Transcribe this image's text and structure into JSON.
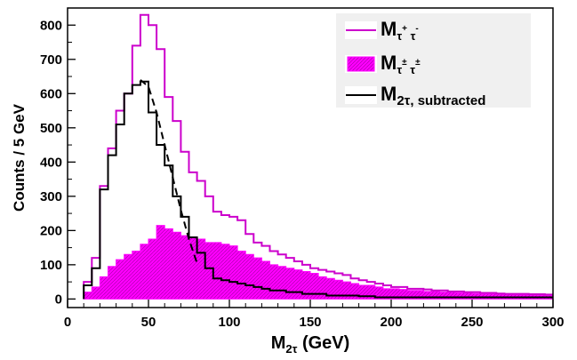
{
  "chart_data": {
    "type": "histogram",
    "xlabel": "M",
    "xlabel_sub": "2τ",
    "xlabel_unit": "(GeV)",
    "ylabel": "Counts / 5 GeV",
    "xlim": [
      0,
      300
    ],
    "ylim": [
      -25,
      850
    ],
    "x_ticks": [
      0,
      50,
      100,
      150,
      200,
      250,
      300
    ],
    "y_ticks": [
      0,
      100,
      200,
      300,
      400,
      500,
      600,
      700,
      800
    ],
    "bin_width": 5,
    "bin_edges_start": 10,
    "grid": false,
    "legend_position": "top-right",
    "series": [
      {
        "name": "M",
        "name_sub": "τ",
        "name_sup1": "+",
        "name_mid": " τ",
        "name_sup2": "-",
        "style": "step-line",
        "color": "#cc00cc",
        "values": [
          50,
          120,
          330,
          440,
          550,
          600,
          740,
          830,
          800,
          730,
          590,
          520,
          430,
          370,
          345,
          300,
          255,
          245,
          240,
          230,
          190,
          165,
          155,
          140,
          130,
          120,
          110,
          100,
          90,
          85,
          80,
          75,
          70,
          60,
          55,
          50,
          45,
          40,
          35,
          35,
          30,
          30,
          28,
          25,
          25,
          22,
          22,
          20,
          20,
          18,
          18,
          16,
          15,
          15,
          15,
          14,
          14,
          13,
          12
        ]
      },
      {
        "name": "M",
        "name_sub": "τ",
        "name_sup1": "±",
        "name_mid": " τ",
        "name_sup2": "±",
        "style": "filled-hatched",
        "color": "#ff00ff",
        "values": [
          20,
          35,
          65,
          95,
          115,
          130,
          140,
          160,
          175,
          215,
          205,
          195,
          185,
          180,
          175,
          165,
          165,
          160,
          155,
          140,
          130,
          120,
          110,
          100,
          95,
          90,
          85,
          80,
          75,
          65,
          60,
          55,
          50,
          45,
          40,
          40,
          35,
          30,
          30,
          28,
          25,
          25,
          22,
          22,
          20,
          20,
          18,
          18,
          16,
          15,
          15,
          14,
          14,
          13,
          12,
          12,
          11,
          10,
          10
        ]
      },
      {
        "name": "M",
        "name_sub": "2τ, subtracted",
        "style": "step-line",
        "color": "#000000",
        "values": [
          40,
          90,
          320,
          420,
          510,
          600,
          625,
          635,
          545,
          450,
          390,
          300,
          240,
          180,
          135,
          90,
          60,
          55,
          50,
          45,
          40,
          35,
          30,
          25,
          25,
          20,
          20,
          15,
          15,
          15,
          10,
          10,
          10,
          10,
          8,
          8,
          5,
          5,
          5,
          5,
          5,
          5,
          5,
          5,
          5,
          5,
          5,
          5,
          5,
          5,
          5,
          5,
          5,
          5,
          5,
          5,
          5,
          5,
          5
        ]
      }
    ],
    "fit_curve": {
      "style": "dashed",
      "color": "#000000",
      "x": [
        45,
        50,
        55,
        60,
        65,
        70,
        75,
        80
      ],
      "y": [
        640,
        620,
        545,
        450,
        355,
        260,
        175,
        105
      ]
    }
  }
}
